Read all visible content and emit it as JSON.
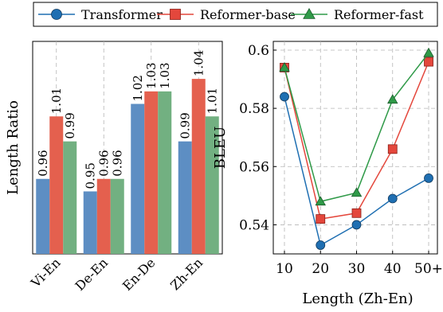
{
  "legend": {
    "placement": "top",
    "entries": [
      {
        "name": "Transformer",
        "color": "#1f6fb2",
        "marker": "circle"
      },
      {
        "name": "Reformer-base",
        "color": "#e4473c",
        "marker": "square"
      },
      {
        "name": "Reformer-fast",
        "color": "#2f9a48",
        "marker": "triangle"
      }
    ]
  },
  "chart_data": [
    {
      "type": "bar",
      "ylabel": "Length Ratio",
      "ylim": [
        0.9,
        1.07
      ],
      "grid": "x-dashed",
      "categories": [
        "Vi-En",
        "De-En",
        "En-De",
        "Zh-En"
      ],
      "series": [
        {
          "name": "Transformer",
          "values": [
            0.96,
            0.95,
            1.02,
            0.99
          ],
          "labels": [
            "0.96",
            "0.95",
            "1.02",
            "0.99"
          ],
          "color": "#5d8ec3"
        },
        {
          "name": "Reformer-base",
          "values": [
            1.01,
            0.96,
            1.03,
            1.04
          ],
          "labels": [
            "1.01",
            "0.96",
            "1.03",
            "1.04"
          ],
          "color": "#e4604e"
        },
        {
          "name": "Reformer-fast",
          "values": [
            0.99,
            0.96,
            1.03,
            1.01
          ],
          "labels": [
            "0.99",
            "0.96",
            "1.03",
            "1.01"
          ],
          "color": "#72b081"
        }
      ]
    },
    {
      "type": "line",
      "xlabel": "Length (Zh-En)",
      "ylabel": "BLEU",
      "x": [
        "10",
        "20",
        "30",
        "40",
        "50+"
      ],
      "yticks": [
        "0.54",
        "0.56",
        "0.58",
        "0.6"
      ],
      "ylim": [
        0.53,
        0.603
      ],
      "grid": "dashed",
      "series": [
        {
          "name": "Transformer",
          "values": [
            0.584,
            0.533,
            0.54,
            0.549,
            0.556
          ],
          "color": "#1f6fb2"
        },
        {
          "name": "Reformer-base",
          "values": [
            0.594,
            0.542,
            0.544,
            0.566,
            0.596
          ],
          "color": "#e4473c"
        },
        {
          "name": "Reformer-fast",
          "values": [
            0.594,
            0.548,
            0.551,
            0.583,
            0.599
          ],
          "color": "#2f9a48"
        }
      ]
    }
  ]
}
